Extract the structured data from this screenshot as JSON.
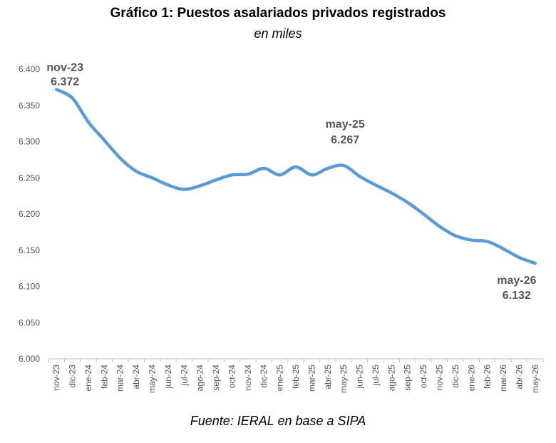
{
  "header": {
    "title": "Gráfico 1: Puestos asalariados privados registrados",
    "subtitle": "en miles"
  },
  "footer": {
    "source": "Fuente: IERAL en base a SIPA"
  },
  "chart_data": {
    "type": "line",
    "title": "Gráfico 1: Puestos asalariados privados registrados",
    "subtitle": "en miles",
    "xlabel": "",
    "ylabel": "",
    "ylim": [
      6000,
      6400
    ],
    "y_ticks": [
      "6.000",
      "6.050",
      "6.100",
      "6.150",
      "6.200",
      "6.250",
      "6.300",
      "6.350",
      "6.400"
    ],
    "y_tick_values": [
      6000,
      6050,
      6100,
      6150,
      6200,
      6250,
      6300,
      6350,
      6400
    ],
    "grid": false,
    "line_color": "#5B9BD5",
    "categories": [
      "nov-23",
      "dic-23",
      "ene-24",
      "feb-24",
      "mar-24",
      "abr-24",
      "may-24",
      "jun-24",
      "jul-24",
      "ago-24",
      "sep-24",
      "oct-24",
      "nov-24",
      "dic-24",
      "ene-25",
      "feb-25",
      "mar-25",
      "abr-25",
      "may-25",
      "jun-25",
      "jul-25",
      "ago-25",
      "sep-25",
      "oct-25",
      "nov-25",
      "dic-25",
      "ene-26",
      "feb-26",
      "mar-26",
      "abr-26",
      "may-26"
    ],
    "series": [
      {
        "values": [
          6372,
          6360,
          6327,
          6302,
          6277,
          6259,
          6250,
          6240,
          6234,
          6239,
          6247,
          6254,
          6255,
          6263,
          6254,
          6265,
          6254,
          6263,
          6267,
          6252,
          6240,
          6229,
          6216,
          6200,
          6183,
          6170,
          6164,
          6162,
          6152,
          6140,
          6132
        ]
      }
    ],
    "annotations": [
      {
        "category": "nov-23",
        "label": "nov-23",
        "value": "6.372"
      },
      {
        "category": "may-25",
        "label": "may-25",
        "value": "6.267"
      },
      {
        "category": "may-26",
        "label": "may-26",
        "value": "6.132"
      }
    ]
  }
}
